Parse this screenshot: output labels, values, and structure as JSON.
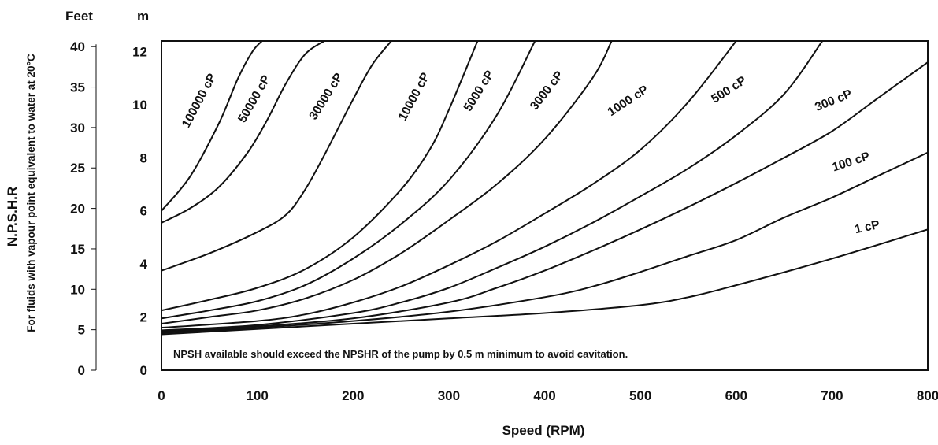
{
  "chart_data": {
    "type": "line",
    "xlabel": "Speed (RPM)",
    "ylabel": "N.P.S.H.R",
    "ylabel_sub": "For fluids with vapour point equivalent to water at 20°C",
    "y_unit_left": "Feet",
    "y_unit_right": "m",
    "xlim": [
      0,
      800
    ],
    "ylim_m": [
      0,
      12.4
    ],
    "ylim_feet": [
      0,
      40.7
    ],
    "x_ticks": [
      0,
      100,
      200,
      300,
      400,
      500,
      600,
      700,
      800
    ],
    "y_ticks_m": [
      0,
      2,
      4,
      6,
      8,
      10,
      12
    ],
    "y_ticks_feet": [
      0,
      5,
      10,
      15,
      20,
      25,
      30,
      35,
      40
    ],
    "grid": false,
    "annotation": "NPSH available should exceed the NPSHR of the pump by 0.5 m minimum to avoid cavitation.",
    "series": [
      {
        "name": "1 cP",
        "x": [
          0,
          100,
          200,
          300,
          400,
          500,
          550,
          600,
          700,
          800
        ],
        "y": [
          1.35,
          1.55,
          1.75,
          1.95,
          2.15,
          2.45,
          2.75,
          3.2,
          4.2,
          5.3
        ],
        "label_at": [
          1102,
          293,
          -12
        ]
      },
      {
        "name": "100 cP",
        "x": [
          0,
          100,
          200,
          300,
          400,
          450,
          500,
          550,
          600,
          650,
          700,
          750,
          800
        ],
        "y": [
          1.4,
          1.6,
          1.85,
          2.2,
          2.75,
          3.15,
          3.7,
          4.3,
          4.9,
          5.75,
          6.5,
          7.35,
          8.2
        ],
        "label_at": [
          1082,
          210,
          -18
        ]
      },
      {
        "name": "300 cP",
        "x": [
          0,
          100,
          200,
          300,
          350,
          400,
          450,
          500,
          550,
          600,
          650,
          700,
          750,
          800
        ],
        "y": [
          1.45,
          1.65,
          1.95,
          2.55,
          3.1,
          3.75,
          4.5,
          5.3,
          6.15,
          7.05,
          8.0,
          9.0,
          10.3,
          11.6
        ],
        "label_at": [
          1060,
          132,
          -22
        ]
      },
      {
        "name": "500 cP",
        "x": [
          0,
          100,
          200,
          250,
          300,
          350,
          400,
          450,
          500,
          550,
          600,
          650,
          690
        ],
        "y": [
          1.5,
          1.7,
          2.15,
          2.55,
          3.1,
          3.85,
          4.65,
          5.55,
          6.55,
          7.6,
          8.85,
          10.4,
          12.4
        ],
        "label_at": [
          928,
          118,
          -33
        ]
      },
      {
        "name": "1000 cP",
        "x": [
          0,
          100,
          150,
          200,
          250,
          300,
          350,
          400,
          450,
          500,
          550,
          600
        ],
        "y": [
          1.6,
          1.85,
          2.1,
          2.55,
          3.15,
          3.95,
          4.85,
          5.9,
          7.0,
          8.3,
          10.1,
          12.4
        ],
        "label_at": [
          800,
          132,
          -33
        ]
      },
      {
        "name": "3000 cP",
        "x": [
          0,
          50,
          100,
          150,
          200,
          250,
          300,
          350,
          400,
          450,
          470
        ],
        "y": [
          1.75,
          2.0,
          2.25,
          2.7,
          3.4,
          4.4,
          5.65,
          7.0,
          8.7,
          11.0,
          12.4
        ],
        "label_at": [
          698,
          118,
          -52
        ]
      },
      {
        "name": "5000 cP",
        "x": [
          0,
          50,
          100,
          150,
          200,
          250,
          300,
          350,
          390
        ],
        "y": [
          1.95,
          2.25,
          2.6,
          3.2,
          4.2,
          5.5,
          7.15,
          9.6,
          12.4
        ],
        "label_at": [
          612,
          118,
          -58
        ]
      },
      {
        "name": "10000 cP",
        "x": [
          0,
          50,
          100,
          150,
          200,
          250,
          280,
          300,
          330
        ],
        "y": [
          2.25,
          2.65,
          3.1,
          3.8,
          5.0,
          6.8,
          8.3,
          9.8,
          12.4
        ],
        "label_at": [
          530,
          125,
          -62
        ]
      },
      {
        "name": "30000 cP",
        "x": [
          0,
          50,
          100,
          130,
          150,
          170,
          200,
          220,
          240
        ],
        "y": [
          3.75,
          4.4,
          5.2,
          5.85,
          6.8,
          8.1,
          10.2,
          11.5,
          12.4
        ],
        "label_at": [
          418,
          125,
          -58
        ]
      },
      {
        "name": "50000 cP",
        "x": [
          0,
          30,
          60,
          90,
          110,
          130,
          150,
          170
        ],
        "y": [
          5.55,
          6.1,
          6.9,
          8.2,
          9.4,
          10.8,
          11.9,
          12.4
        ],
        "label_at": [
          327,
          128,
          -60
        ]
      },
      {
        "name": "100000 cP",
        "x": [
          0,
          30,
          60,
          80,
          95,
          105
        ],
        "y": [
          6.0,
          7.3,
          9.3,
          11.0,
          12.0,
          12.4
        ],
        "label_at": [
          257,
          130,
          -62
        ]
      }
    ]
  }
}
